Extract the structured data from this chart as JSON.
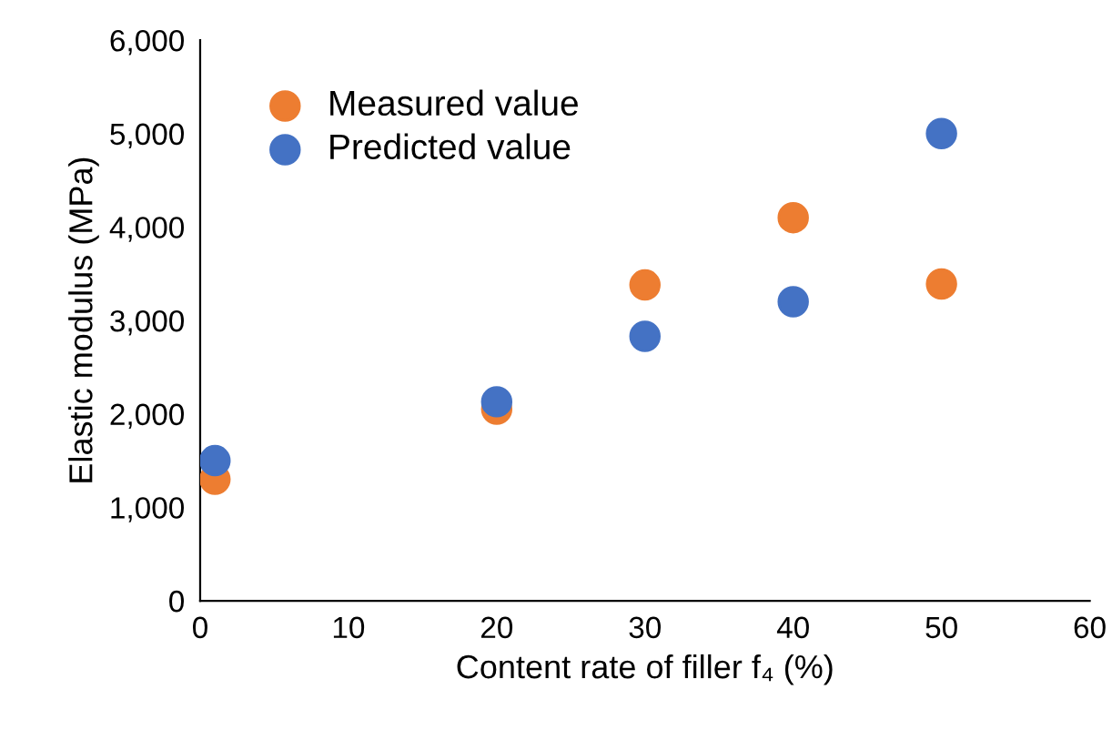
{
  "chart_data": {
    "type": "scatter",
    "xlabel": "Content rate of filler f₄ (%)",
    "ylabel": "Elastic modulus (MPa)",
    "x": [
      1,
      20,
      30,
      40,
      50
    ],
    "series": [
      {
        "name": "Measured value",
        "color": "#ed7d31",
        "values": [
          1300,
          2050,
          3380,
          4100,
          3390
        ]
      },
      {
        "name": "Predicted value",
        "color": "#4472c4",
        "values": [
          1500,
          2130,
          2830,
          3200,
          5000
        ]
      }
    ],
    "xlim": [
      0,
      60
    ],
    "xticks": [
      0,
      10,
      20,
      30,
      40,
      50,
      60
    ],
    "ylim": [
      0,
      6000
    ],
    "yticks": [
      {
        "value": 0,
        "label": "0"
      },
      {
        "value": 1000,
        "label": "1,000"
      },
      {
        "value": 2000,
        "label": "2,000"
      },
      {
        "value": 3000,
        "label": "3,000"
      },
      {
        "value": 4000,
        "label": "4,000"
      },
      {
        "value": 5000,
        "label": "5,000"
      },
      {
        "value": 6000,
        "label": "6,000"
      }
    ],
    "grid": false,
    "legend": "top left",
    "marker": "circle"
  }
}
